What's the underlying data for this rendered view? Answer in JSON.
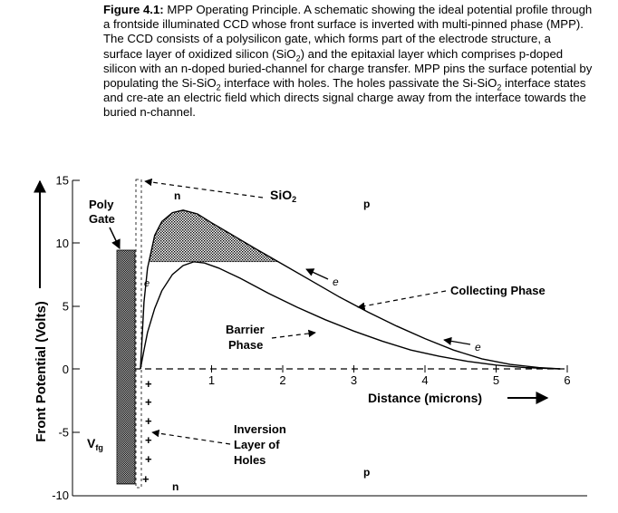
{
  "caption": {
    "label": "Figure 4.1:",
    "segments": [
      {
        "t": " MPP Operating Principle. A schematic showing the ideal potential profile through a frontside illuminated CCD whose front surface is inverted with multi-pinned phase (MPP). The CCD consists of a polysilicon gate, which forms part of the electrode structure, a surface layer of oxidized silicon (SiO"
      },
      {
        "t": "2",
        "sub": true
      },
      {
        "t": ") and the epitaxial layer which comprises p-doped silicon with an n-doped buried-channel for charge transfer. MPP pins the surface potential by populating the Si-SiO"
      },
      {
        "t": "2",
        "sub": true
      },
      {
        "t": " interface with holes. The holes passivate the Si-SiO"
      },
      {
        "t": "2",
        "sub": true
      },
      {
        "t": " interface states and cre-ate an electric field which directs signal charge away from the interface towards the buried n-channel."
      }
    ]
  },
  "figure": {
    "y_axis": {
      "label": "Front Potential (Volts)",
      "ticks": [
        "15",
        "10",
        "5",
        "0",
        "-5",
        "-10"
      ]
    },
    "x_axis": {
      "label": "Distance (microns)",
      "ticks": [
        "1",
        "2",
        "3",
        "4",
        "5",
        "6"
      ]
    },
    "labels": {
      "poly_gate_1": "Poly",
      "poly_gate_2": "Gate",
      "sio2": "SiO",
      "sio2_sub": "2",
      "n_top": "n",
      "p_top": "p",
      "n_bottom": "n",
      "p_bottom": "p",
      "collecting_phase": "Collecting Phase",
      "barrier_phase_1": "Barrier",
      "barrier_phase_2": "Phase",
      "inversion_1": "Inversion",
      "inversion_2": "Layer of",
      "inversion_3": "Holes",
      "vfg": "V",
      "vfg_sub": "fg",
      "electron": "e",
      "plus": "+"
    }
  },
  "chart_data": {
    "type": "line",
    "xlabel": "Distance (microns)",
    "ylabel": "Front Potential (Volts)",
    "xlim": [
      -0.1,
      6
    ],
    "ylim": [
      -10,
      15
    ],
    "xticks": [
      1,
      2,
      3,
      4,
      5,
      6
    ],
    "yticks": [
      15,
      10,
      5,
      0,
      -5,
      -10
    ],
    "series": [
      {
        "name": "Collecting Phase",
        "x": [
          0.0,
          0.05,
          0.1,
          0.2,
          0.3,
          0.45,
          0.6,
          0.8,
          1.0,
          1.3,
          1.6,
          2.0,
          2.4,
          2.8,
          3.2,
          3.6,
          4.0,
          4.4,
          4.8,
          5.2,
          5.6,
          5.9
        ],
        "y": [
          0.0,
          5.3,
          8.0,
          10.6,
          11.7,
          12.4,
          12.6,
          12.3,
          11.6,
          10.6,
          9.6,
          8.3,
          7.0,
          5.7,
          4.5,
          3.4,
          2.4,
          1.5,
          0.8,
          0.35,
          0.1,
          0.0
        ]
      },
      {
        "name": "Barrier Phase",
        "x": [
          0.0,
          0.05,
          0.1,
          0.2,
          0.3,
          0.45,
          0.6,
          0.75,
          0.9,
          1.1,
          1.4,
          1.8,
          2.2,
          2.6,
          3.0,
          3.4,
          3.8,
          4.2,
          4.6,
          5.0,
          5.4,
          5.9
        ],
        "y": [
          0.0,
          1.5,
          2.9,
          4.8,
          6.2,
          7.5,
          8.2,
          8.5,
          8.4,
          8.0,
          7.2,
          6.0,
          4.9,
          3.9,
          3.0,
          2.2,
          1.5,
          1.0,
          0.6,
          0.3,
          0.1,
          0.0
        ]
      },
      {
        "name": "Gate potential",
        "x": [
          -0.1,
          -0.1
        ],
        "y": [
          -8.6,
          9.0
        ]
      }
    ]
  }
}
